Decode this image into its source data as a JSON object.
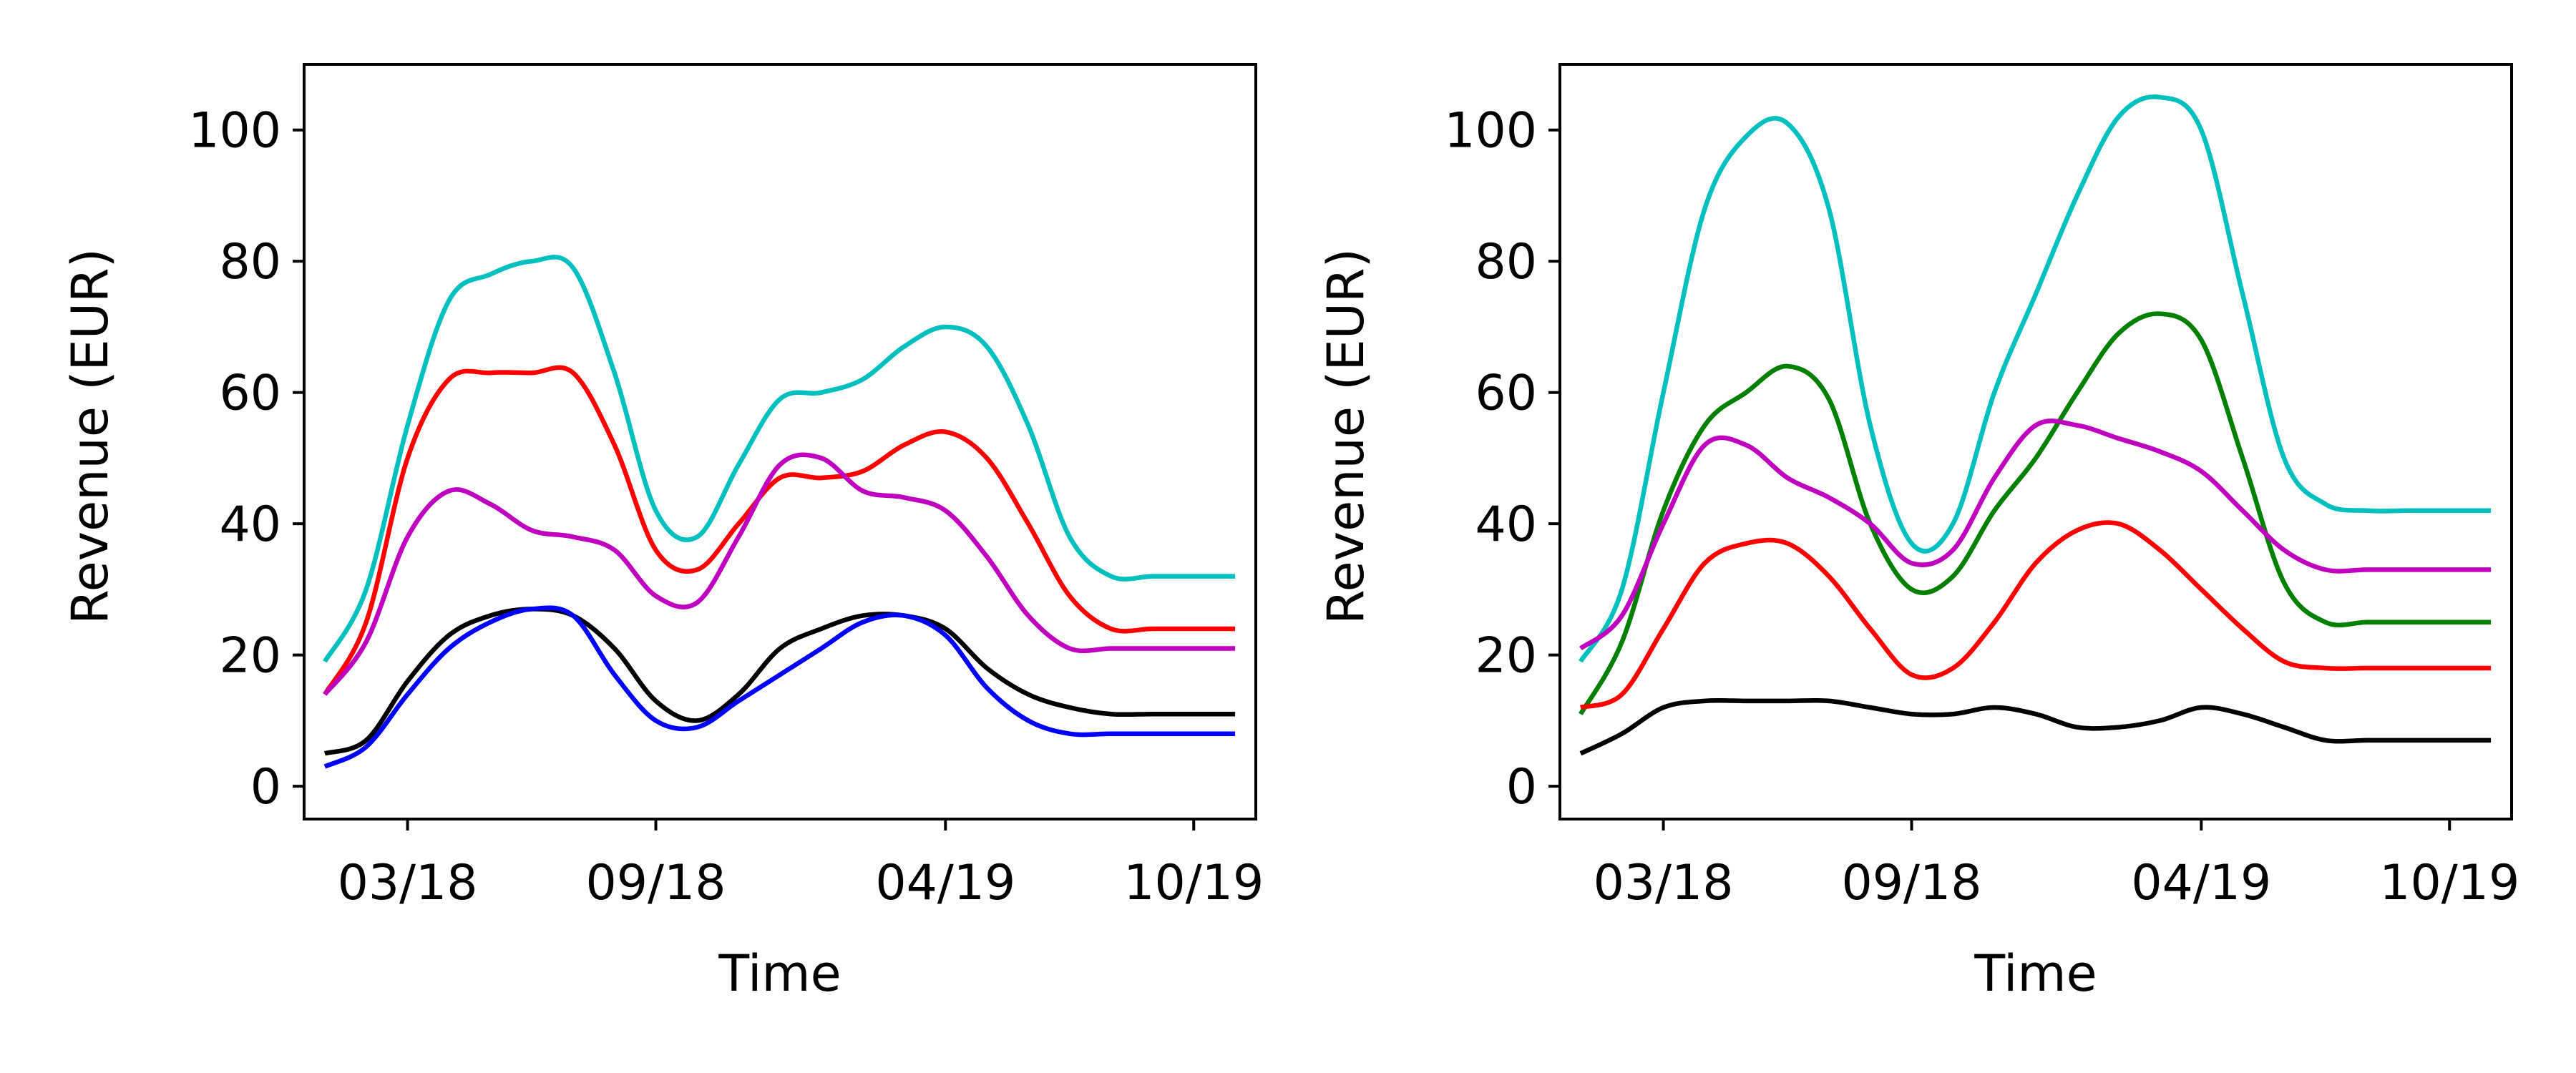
{
  "chart_data": [
    {
      "type": "line",
      "xlabel": "Time",
      "ylabel": "Revenue (EUR)",
      "x": [
        "2018-01",
        "2018-02",
        "2018-03",
        "2018-04",
        "2018-05",
        "2018-06",
        "2018-07",
        "2018-08",
        "2018-09",
        "2018-10",
        "2018-11",
        "2018-12",
        "2019-01",
        "2019-02",
        "2019-03",
        "2019-04",
        "2019-05",
        "2019-06",
        "2019-07",
        "2019-08",
        "2019-09",
        "2019-10",
        "2019-11"
      ],
      "xticks": [
        "03/18",
        "09/18",
        "04/19",
        "10/19"
      ],
      "xtick_dates": [
        "2018-03",
        "2018-09",
        "2019-04",
        "2019-10"
      ],
      "yticks": [
        0,
        20,
        40,
        60,
        80,
        100
      ],
      "ylim": [
        -5,
        110
      ],
      "grid": false,
      "series": [
        {
          "color": "#00bfbf",
          "values": [
            19,
            30,
            55,
            74,
            78,
            80,
            79,
            63,
            42,
            38,
            49,
            59,
            60,
            62,
            67,
            70,
            67,
            55,
            38,
            32,
            32,
            32,
            32
          ]
        },
        {
          "color": "#ff0000",
          "values": [
            14,
            25,
            50,
            62,
            63,
            63,
            63,
            52,
            36,
            33,
            40,
            47,
            47,
            48,
            52,
            54,
            50,
            40,
            29,
            24,
            24,
            24,
            24
          ]
        },
        {
          "color": "#bf00bf",
          "values": [
            14,
            22,
            38,
            45,
            43,
            39,
            38,
            36,
            29,
            28,
            38,
            49,
            50,
            45,
            44,
            42,
            35,
            26,
            21,
            21,
            21,
            21,
            21
          ]
        },
        {
          "color": "#000000",
          "values": [
            5,
            7,
            16,
            23,
            26,
            27,
            26,
            21,
            13,
            10,
            14,
            21,
            24,
            26,
            26,
            24,
            18,
            14,
            12,
            11,
            11,
            11,
            11
          ]
        },
        {
          "color": "#0000ff",
          "values": [
            3,
            6,
            14,
            21,
            25,
            27,
            26,
            17,
            10,
            9,
            13,
            17,
            21,
            25,
            26,
            23,
            15,
            10,
            8,
            8,
            8,
            8,
            8
          ]
        }
      ]
    },
    {
      "type": "line",
      "xlabel": "Time",
      "ylabel": "Revenue (EUR)",
      "x": [
        "2018-01",
        "2018-02",
        "2018-03",
        "2018-04",
        "2018-05",
        "2018-06",
        "2018-07",
        "2018-08",
        "2018-09",
        "2018-10",
        "2018-11",
        "2018-12",
        "2019-01",
        "2019-02",
        "2019-03",
        "2019-04",
        "2019-05",
        "2019-06",
        "2019-07",
        "2019-08",
        "2019-09",
        "2019-10",
        "2019-11"
      ],
      "xticks": [
        "03/18",
        "09/18",
        "04/19",
        "10/19"
      ],
      "xtick_dates": [
        "2018-03",
        "2018-09",
        "2019-04",
        "2019-10"
      ],
      "yticks": [
        0,
        20,
        40,
        60,
        80,
        100
      ],
      "ylim": [
        -5,
        110
      ],
      "grid": false,
      "series": [
        {
          "color": "#00bfbf",
          "values": [
            19,
            30,
            60,
            88,
            99,
            101,
            88,
            55,
            37,
            40,
            60,
            75,
            90,
            102,
            105,
            100,
            75,
            50,
            43,
            42,
            42,
            42,
            42
          ]
        },
        {
          "color": "#008000",
          "values": [
            11,
            22,
            42,
            55,
            60,
            64,
            59,
            40,
            30,
            32,
            42,
            50,
            60,
            69,
            72,
            68,
            50,
            31,
            25,
            25,
            25,
            25,
            25
          ]
        },
        {
          "color": "#bf00bf",
          "values": [
            21,
            26,
            40,
            52,
            52,
            47,
            44,
            40,
            34,
            36,
            47,
            55,
            55,
            53,
            51,
            48,
            42,
            36,
            33,
            33,
            33,
            33,
            33
          ]
        },
        {
          "color": "#ff0000",
          "values": [
            12,
            14,
            24,
            34,
            37,
            37,
            32,
            24,
            17,
            18,
            25,
            34,
            39,
            40,
            36,
            30,
            24,
            19,
            18,
            18,
            18,
            18,
            18
          ]
        },
        {
          "color": "#000000",
          "values": [
            5,
            8,
            12,
            13,
            13,
            13,
            13,
            12,
            11,
            11,
            12,
            11,
            9,
            9,
            10,
            12,
            11,
            9,
            7,
            7,
            7,
            7,
            7
          ]
        }
      ]
    }
  ]
}
